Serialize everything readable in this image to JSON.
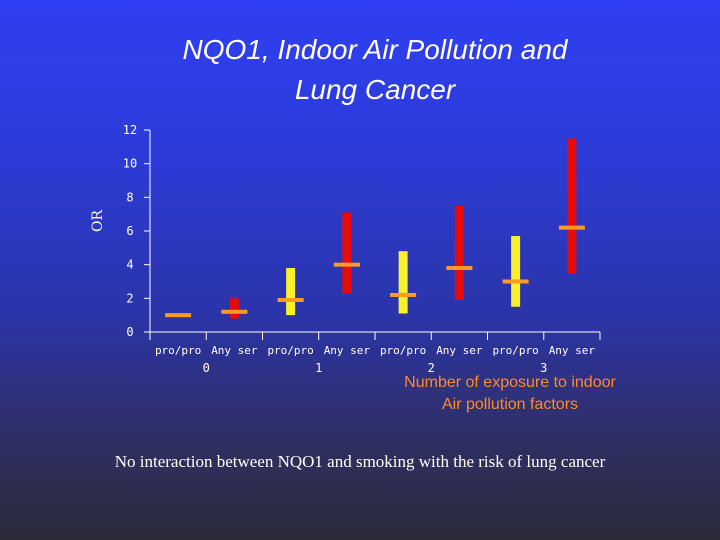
{
  "chart_data": {
    "type": "range",
    "title": "NQO1, Indoor Air Pollution and Lung Cancer",
    "title_lines": [
      "NQO1, Indoor Air Pollution and",
      "Lung Cancer"
    ],
    "ylabel": "OR",
    "ylim": [
      0,
      12
    ],
    "yticks": [
      0,
      2,
      4,
      6,
      8,
      10,
      12
    ],
    "xlabel_lines": [
      "Number of exposure to indoor",
      "Air pollution factors"
    ],
    "groups": [
      "0",
      "1",
      "2",
      "3"
    ],
    "subcategories": [
      "pro/pro",
      "Any ser"
    ],
    "series_colors": {
      "pro/pro": "#f7f02a",
      "Any ser": "#e80b0b"
    },
    "estimate_color": "#ff9a22",
    "points": [
      {
        "group": "0",
        "genotype": "pro/pro",
        "or": 1.0,
        "ci_low": null,
        "ci_high": null
      },
      {
        "group": "0",
        "genotype": "Any ser",
        "or": 1.2,
        "ci_low": 0.8,
        "ci_high": 2.0
      },
      {
        "group": "1",
        "genotype": "pro/pro",
        "or": 1.9,
        "ci_low": 1.0,
        "ci_high": 3.8
      },
      {
        "group": "1",
        "genotype": "Any ser",
        "or": 4.0,
        "ci_low": 2.3,
        "ci_high": 7.1
      },
      {
        "group": "2",
        "genotype": "pro/pro",
        "or": 2.2,
        "ci_low": 1.1,
        "ci_high": 4.8
      },
      {
        "group": "2",
        "genotype": "Any ser",
        "or": 3.8,
        "ci_low": 1.9,
        "ci_high": 7.5
      },
      {
        "group": "3",
        "genotype": "pro/pro",
        "or": 3.0,
        "ci_low": 1.5,
        "ci_high": 5.7
      },
      {
        "group": "3",
        "genotype": "Any ser",
        "or": 6.2,
        "ci_low": 3.5,
        "ci_high": 11.5
      }
    ],
    "grid": false
  },
  "caption": "No interaction between NQO1 and smoking with the risk of lung cancer"
}
